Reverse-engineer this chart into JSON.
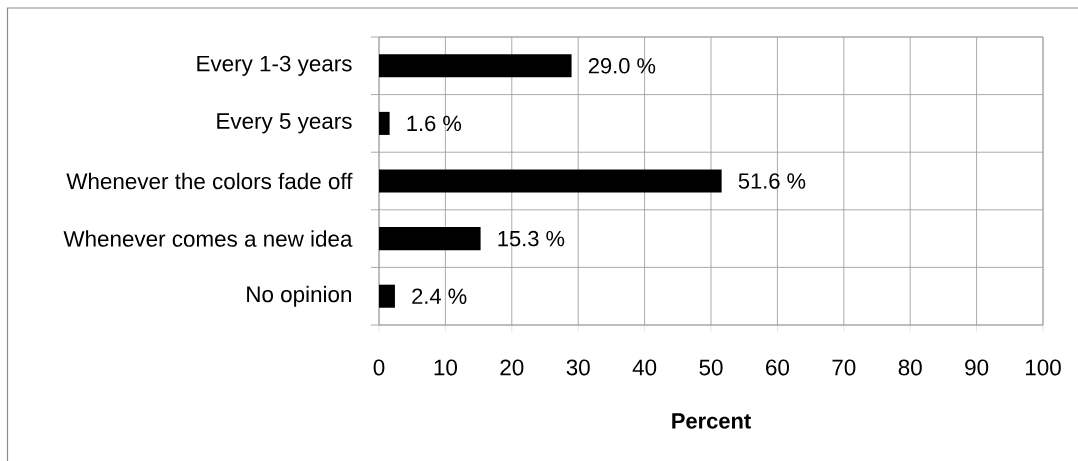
{
  "chart_data": {
    "type": "bar",
    "orientation": "horizontal",
    "categories": [
      "Every 1-3 years",
      "Every 5 years",
      "Whenever the colors fade off",
      "Whenever comes a new idea",
      "No opinion"
    ],
    "values": [
      29.0,
      1.6,
      51.6,
      15.3,
      2.4
    ],
    "value_labels": [
      "29.0 %",
      "1.6 %",
      "51.6 %",
      "15.3 %",
      "2.4 %"
    ],
    "color": "#000000",
    "xlabel": "Percent",
    "xlim": [
      0,
      100
    ],
    "xticks": [
      0,
      10,
      20,
      30,
      40,
      50,
      60,
      70,
      80,
      90,
      100
    ],
    "grid": true
  }
}
